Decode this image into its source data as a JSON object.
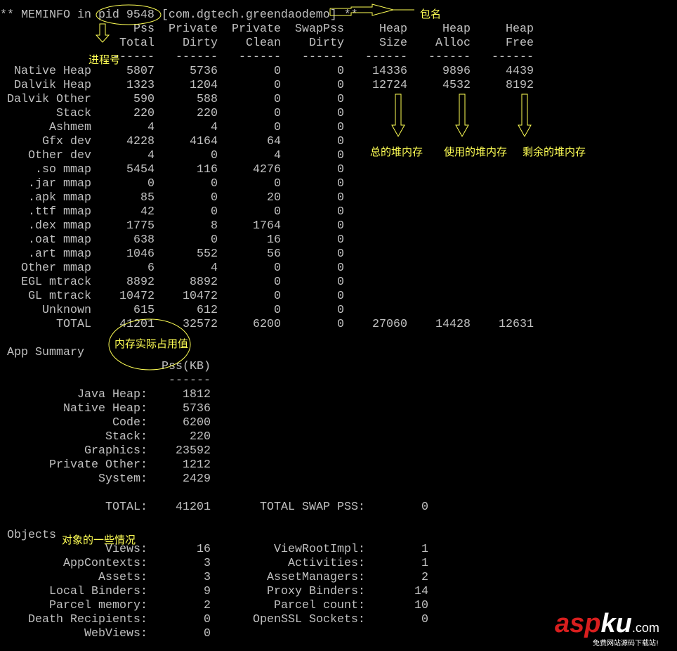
{
  "header": {
    "prefix": "** MEMINFO in ",
    "pid": "pid 9548",
    "package": "[com.dgtech.greendaodemo]",
    "suffix": "**"
  },
  "meminfo_table": {
    "header_row1": [
      "",
      "Pss",
      "Private",
      "Private",
      "SwapPss",
      "Heap",
      "Heap",
      "Heap"
    ],
    "header_row2": [
      "",
      "Total",
      "Dirty",
      "Clean",
      "Dirty",
      "Size",
      "Alloc",
      "Free"
    ],
    "separator": [
      "",
      "------",
      "------",
      "------",
      "------",
      "------",
      "------",
      "------"
    ],
    "rows": [
      [
        "Native Heap",
        "5807",
        "5736",
        "0",
        "0",
        "14336",
        "9896",
        "4439"
      ],
      [
        "Dalvik Heap",
        "1323",
        "1204",
        "0",
        "0",
        "12724",
        "4532",
        "8192"
      ],
      [
        "Dalvik Other",
        "590",
        "588",
        "0",
        "0",
        "",
        "",
        ""
      ],
      [
        "Stack",
        "220",
        "220",
        "0",
        "0",
        "",
        "",
        ""
      ],
      [
        "Ashmem",
        "4",
        "4",
        "0",
        "0",
        "",
        "",
        ""
      ],
      [
        "Gfx dev",
        "4228",
        "4164",
        "64",
        "0",
        "",
        "",
        ""
      ],
      [
        "Other dev",
        "4",
        "0",
        "4",
        "0",
        "",
        "",
        ""
      ],
      [
        ".so mmap",
        "5454",
        "116",
        "4276",
        "0",
        "",
        "",
        ""
      ],
      [
        ".jar mmap",
        "0",
        "0",
        "0",
        "0",
        "",
        "",
        ""
      ],
      [
        ".apk mmap",
        "85",
        "0",
        "20",
        "0",
        "",
        "",
        ""
      ],
      [
        ".ttf mmap",
        "42",
        "0",
        "0",
        "0",
        "",
        "",
        ""
      ],
      [
        ".dex mmap",
        "1775",
        "8",
        "1764",
        "0",
        "",
        "",
        ""
      ],
      [
        ".oat mmap",
        "638",
        "0",
        "16",
        "0",
        "",
        "",
        ""
      ],
      [
        ".art mmap",
        "1046",
        "552",
        "56",
        "0",
        "",
        "",
        ""
      ],
      [
        "Other mmap",
        "6",
        "4",
        "0",
        "0",
        "",
        "",
        ""
      ],
      [
        "EGL mtrack",
        "8892",
        "8892",
        "0",
        "0",
        "",
        "",
        ""
      ],
      [
        "GL mtrack",
        "10472",
        "10472",
        "0",
        "0",
        "",
        "",
        ""
      ],
      [
        "Unknown",
        "615",
        "612",
        "0",
        "0",
        "",
        "",
        ""
      ],
      [
        "TOTAL",
        "41201",
        "32572",
        "6200",
        "0",
        "27060",
        "14428",
        "12631"
      ]
    ]
  },
  "app_summary": {
    "title": "App Summary",
    "column_header": "Pss(KB)",
    "separator": "------",
    "rows": [
      [
        "Java Heap:",
        "1812"
      ],
      [
        "Native Heap:",
        "5736"
      ],
      [
        "Code:",
        "6200"
      ],
      [
        "Stack:",
        "220"
      ],
      [
        "Graphics:",
        "23592"
      ],
      [
        "Private Other:",
        "1212"
      ],
      [
        "System:",
        "2429"
      ]
    ],
    "total_label": "TOTAL:",
    "total_value": "41201",
    "swap_label": "TOTAL SWAP PSS:",
    "swap_value": "0"
  },
  "objects": {
    "title": "Objects",
    "rows": [
      [
        "Views:",
        "16",
        "ViewRootImpl:",
        "1"
      ],
      [
        "AppContexts:",
        "3",
        "Activities:",
        "1"
      ],
      [
        "Assets:",
        "3",
        "AssetManagers:",
        "2"
      ],
      [
        "Local Binders:",
        "9",
        "Proxy Binders:",
        "14"
      ],
      [
        "Parcel memory:",
        "2",
        "Parcel count:",
        "10"
      ],
      [
        "Death Recipients:",
        "0",
        "OpenSSL Sockets:",
        "0"
      ],
      [
        "WebViews:",
        "0",
        "",
        ""
      ]
    ]
  },
  "annotations": {
    "package_name": "包名",
    "process_id": "进程号",
    "heap_size": "总的堆内存",
    "heap_alloc": "使用的堆内存",
    "heap_free": "剩余的堆内存",
    "actual_usage": "内存实际占用值",
    "objects_note": "对象的一些情况"
  },
  "watermark": {
    "brand_red": "asp",
    "brand_white": "ku",
    "domain": ".com",
    "slogan": "免费网站源码下载站!"
  },
  "colors": {
    "background": "#000000",
    "terminal_text": "#c0c0c0",
    "annotation": "#ffff55",
    "brand_red": "#d81e1e"
  }
}
